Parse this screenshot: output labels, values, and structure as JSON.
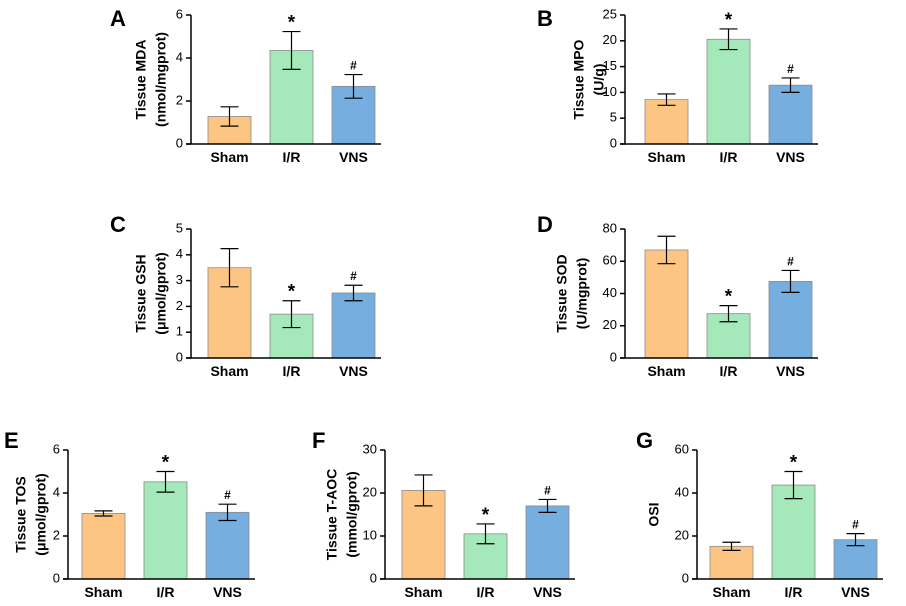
{
  "colors": {
    "sham": "#fdc583",
    "ir": "#a5e8b9",
    "vns": "#75aedf",
    "axis": "#000000",
    "edge": "#8c8c8c"
  },
  "chart_data": [
    {
      "id": "A",
      "type": "bar",
      "letter": "A",
      "ylabel_lines": [
        "Tissue MDA",
        "(nmol/mgprot)"
      ],
      "categories": [
        "Sham",
        "I/R",
        "VNS"
      ],
      "values": [
        1.28,
        4.35,
        2.68
      ],
      "errors": [
        0.45,
        0.88,
        0.55
      ],
      "ylim": [
        0,
        6
      ],
      "yticks": [
        "0",
        "2",
        "4",
        "6"
      ],
      "markers": [
        "",
        "*",
        "#"
      ]
    },
    {
      "id": "B",
      "type": "bar",
      "letter": "B",
      "ylabel_lines": [
        "Tissue MPO",
        "(U/g)"
      ],
      "categories": [
        "Sham",
        "I/R",
        "VNS"
      ],
      "values": [
        8.6,
        20.3,
        11.4
      ],
      "errors": [
        1.1,
        2.0,
        1.4
      ],
      "ylim": [
        0,
        25
      ],
      "yticks": [
        "0",
        "5",
        "10",
        "15",
        "20",
        "25"
      ],
      "markers": [
        "",
        "*",
        "#"
      ]
    },
    {
      "id": "C",
      "type": "bar",
      "letter": "C",
      "ylabel_lines": [
        "Tissue GSH",
        "(μmol/gprot)"
      ],
      "categories": [
        "Sham",
        "I/R",
        "VNS"
      ],
      "values": [
        3.5,
        1.7,
        2.52
      ],
      "errors": [
        0.74,
        0.52,
        0.3
      ],
      "ylim": [
        0,
        5
      ],
      "yticks": [
        "0",
        "1",
        "2",
        "3",
        "4",
        "5"
      ],
      "markers": [
        "",
        "*",
        "#"
      ]
    },
    {
      "id": "D",
      "type": "bar",
      "letter": "D",
      "ylabel_lines": [
        "Tissue SOD",
        "(U/mgprot)"
      ],
      "categories": [
        "Sham",
        "I/R",
        "VNS"
      ],
      "values": [
        67,
        27.5,
        47.5
      ],
      "errors": [
        8.5,
        5.0,
        6.8
      ],
      "ylim": [
        0,
        80
      ],
      "yticks": [
        "0",
        "20",
        "40",
        "60",
        "80"
      ],
      "markers": [
        "",
        "*",
        "#"
      ]
    },
    {
      "id": "E",
      "type": "bar",
      "letter": "E",
      "ylabel_lines": [
        "Tissue TOS",
        "(μmol/gprot)"
      ],
      "categories": [
        "Sham",
        "I/R",
        "VNS"
      ],
      "values": [
        3.05,
        4.52,
        3.1
      ],
      "errors": [
        0.12,
        0.48,
        0.38
      ],
      "ylim": [
        0,
        6
      ],
      "yticks": [
        "0",
        "2",
        "4",
        "6"
      ],
      "markers": [
        "",
        "*",
        "#"
      ]
    },
    {
      "id": "F",
      "type": "bar",
      "letter": "F",
      "ylabel_lines": [
        "Tissue T-AOC",
        "(mmol/gprot)"
      ],
      "categories": [
        "Sham",
        "I/R",
        "VNS"
      ],
      "values": [
        20.6,
        10.5,
        17.0
      ],
      "errors": [
        3.6,
        2.3,
        1.5
      ],
      "ylim": [
        0,
        30
      ],
      "yticks": [
        "0",
        "10",
        "20",
        "30"
      ],
      "markers": [
        "",
        "*",
        "#"
      ]
    },
    {
      "id": "G",
      "type": "bar",
      "letter": "G",
      "ylabel_lines": [
        "OSI"
      ],
      "categories": [
        "Sham",
        "I/R",
        "VNS"
      ],
      "values": [
        15.2,
        43.7,
        18.3
      ],
      "errors": [
        1.9,
        6.3,
        2.8
      ],
      "ylim": [
        0,
        60
      ],
      "yticks": [
        "0",
        "20",
        "40",
        "60"
      ],
      "markers": [
        "",
        "*",
        "#"
      ]
    }
  ]
}
